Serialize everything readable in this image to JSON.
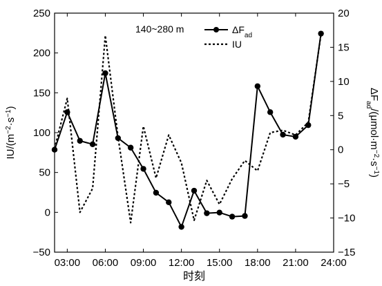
{
  "chart_data": {
    "type": "line",
    "annotation": "140~280 m",
    "xlabel": "时刻",
    "x_ticks": [
      "03:00",
      "06:00",
      "09:00",
      "12:00",
      "15:00",
      "18:00",
      "21:00",
      "24:00"
    ],
    "x_tick_values": [
      3,
      6,
      9,
      12,
      15,
      18,
      21,
      24
    ],
    "xlim": [
      2,
      24
    ],
    "y_left": {
      "label_main": "IU/(m",
      "label_sup1": "−2",
      "label_mid": "·s",
      "label_sup2": "−1",
      "label_end": ")",
      "lim": [
        -50,
        250
      ],
      "ticks": [
        "−50",
        "0",
        "50",
        "100",
        "150",
        "200",
        "250"
      ],
      "tick_values": [
        -50,
        0,
        50,
        100,
        150,
        200,
        250
      ]
    },
    "y_right": {
      "label_main": "ΔF",
      "label_sub": "ad",
      "label_unit_open": "/(μmol·m",
      "label_sup1": "−2",
      "label_mid": "·s",
      "label_sup2": "−1",
      "label_end": ")",
      "lim": [
        -15,
        20
      ],
      "ticks": [
        "−15",
        "−10",
        "−5",
        "0",
        "5",
        "10",
        "15",
        "20"
      ],
      "tick_values": [
        -15,
        -10,
        -5,
        0,
        5,
        10,
        15,
        20
      ]
    },
    "legend_position": "top-right",
    "series": [
      {
        "name_main": "ΔF",
        "name_sub": "ad",
        "axis": "right",
        "style": "solid-markers",
        "x": [
          2,
          3,
          4,
          5,
          6,
          7,
          8,
          9,
          10,
          11,
          12,
          13,
          14,
          15,
          16,
          17,
          18,
          19,
          20,
          21,
          22,
          23
        ],
        "values": [
          0,
          5.5,
          1.3,
          0.8,
          11.2,
          1.7,
          0.3,
          -2.8,
          -6.3,
          -7.7,
          -11.3,
          -6,
          -9.3,
          -9.2,
          -9.8,
          -9.7,
          9.3,
          5.5,
          2.2,
          1.9,
          3.6,
          17
        ]
      },
      {
        "name": "IU",
        "axis": "left",
        "style": "dotted",
        "x": [
          2,
          3,
          4,
          5,
          6,
          7,
          8,
          9,
          10,
          11,
          12,
          13,
          14,
          15,
          16,
          17,
          18,
          19,
          20,
          21,
          22,
          23
        ],
        "values": [
          80,
          143,
          0,
          30,
          222,
          95,
          -13,
          108,
          43,
          97,
          62,
          -10,
          40,
          10,
          42,
          65,
          52,
          100,
          103,
          97,
          113,
          223
        ]
      }
    ]
  }
}
